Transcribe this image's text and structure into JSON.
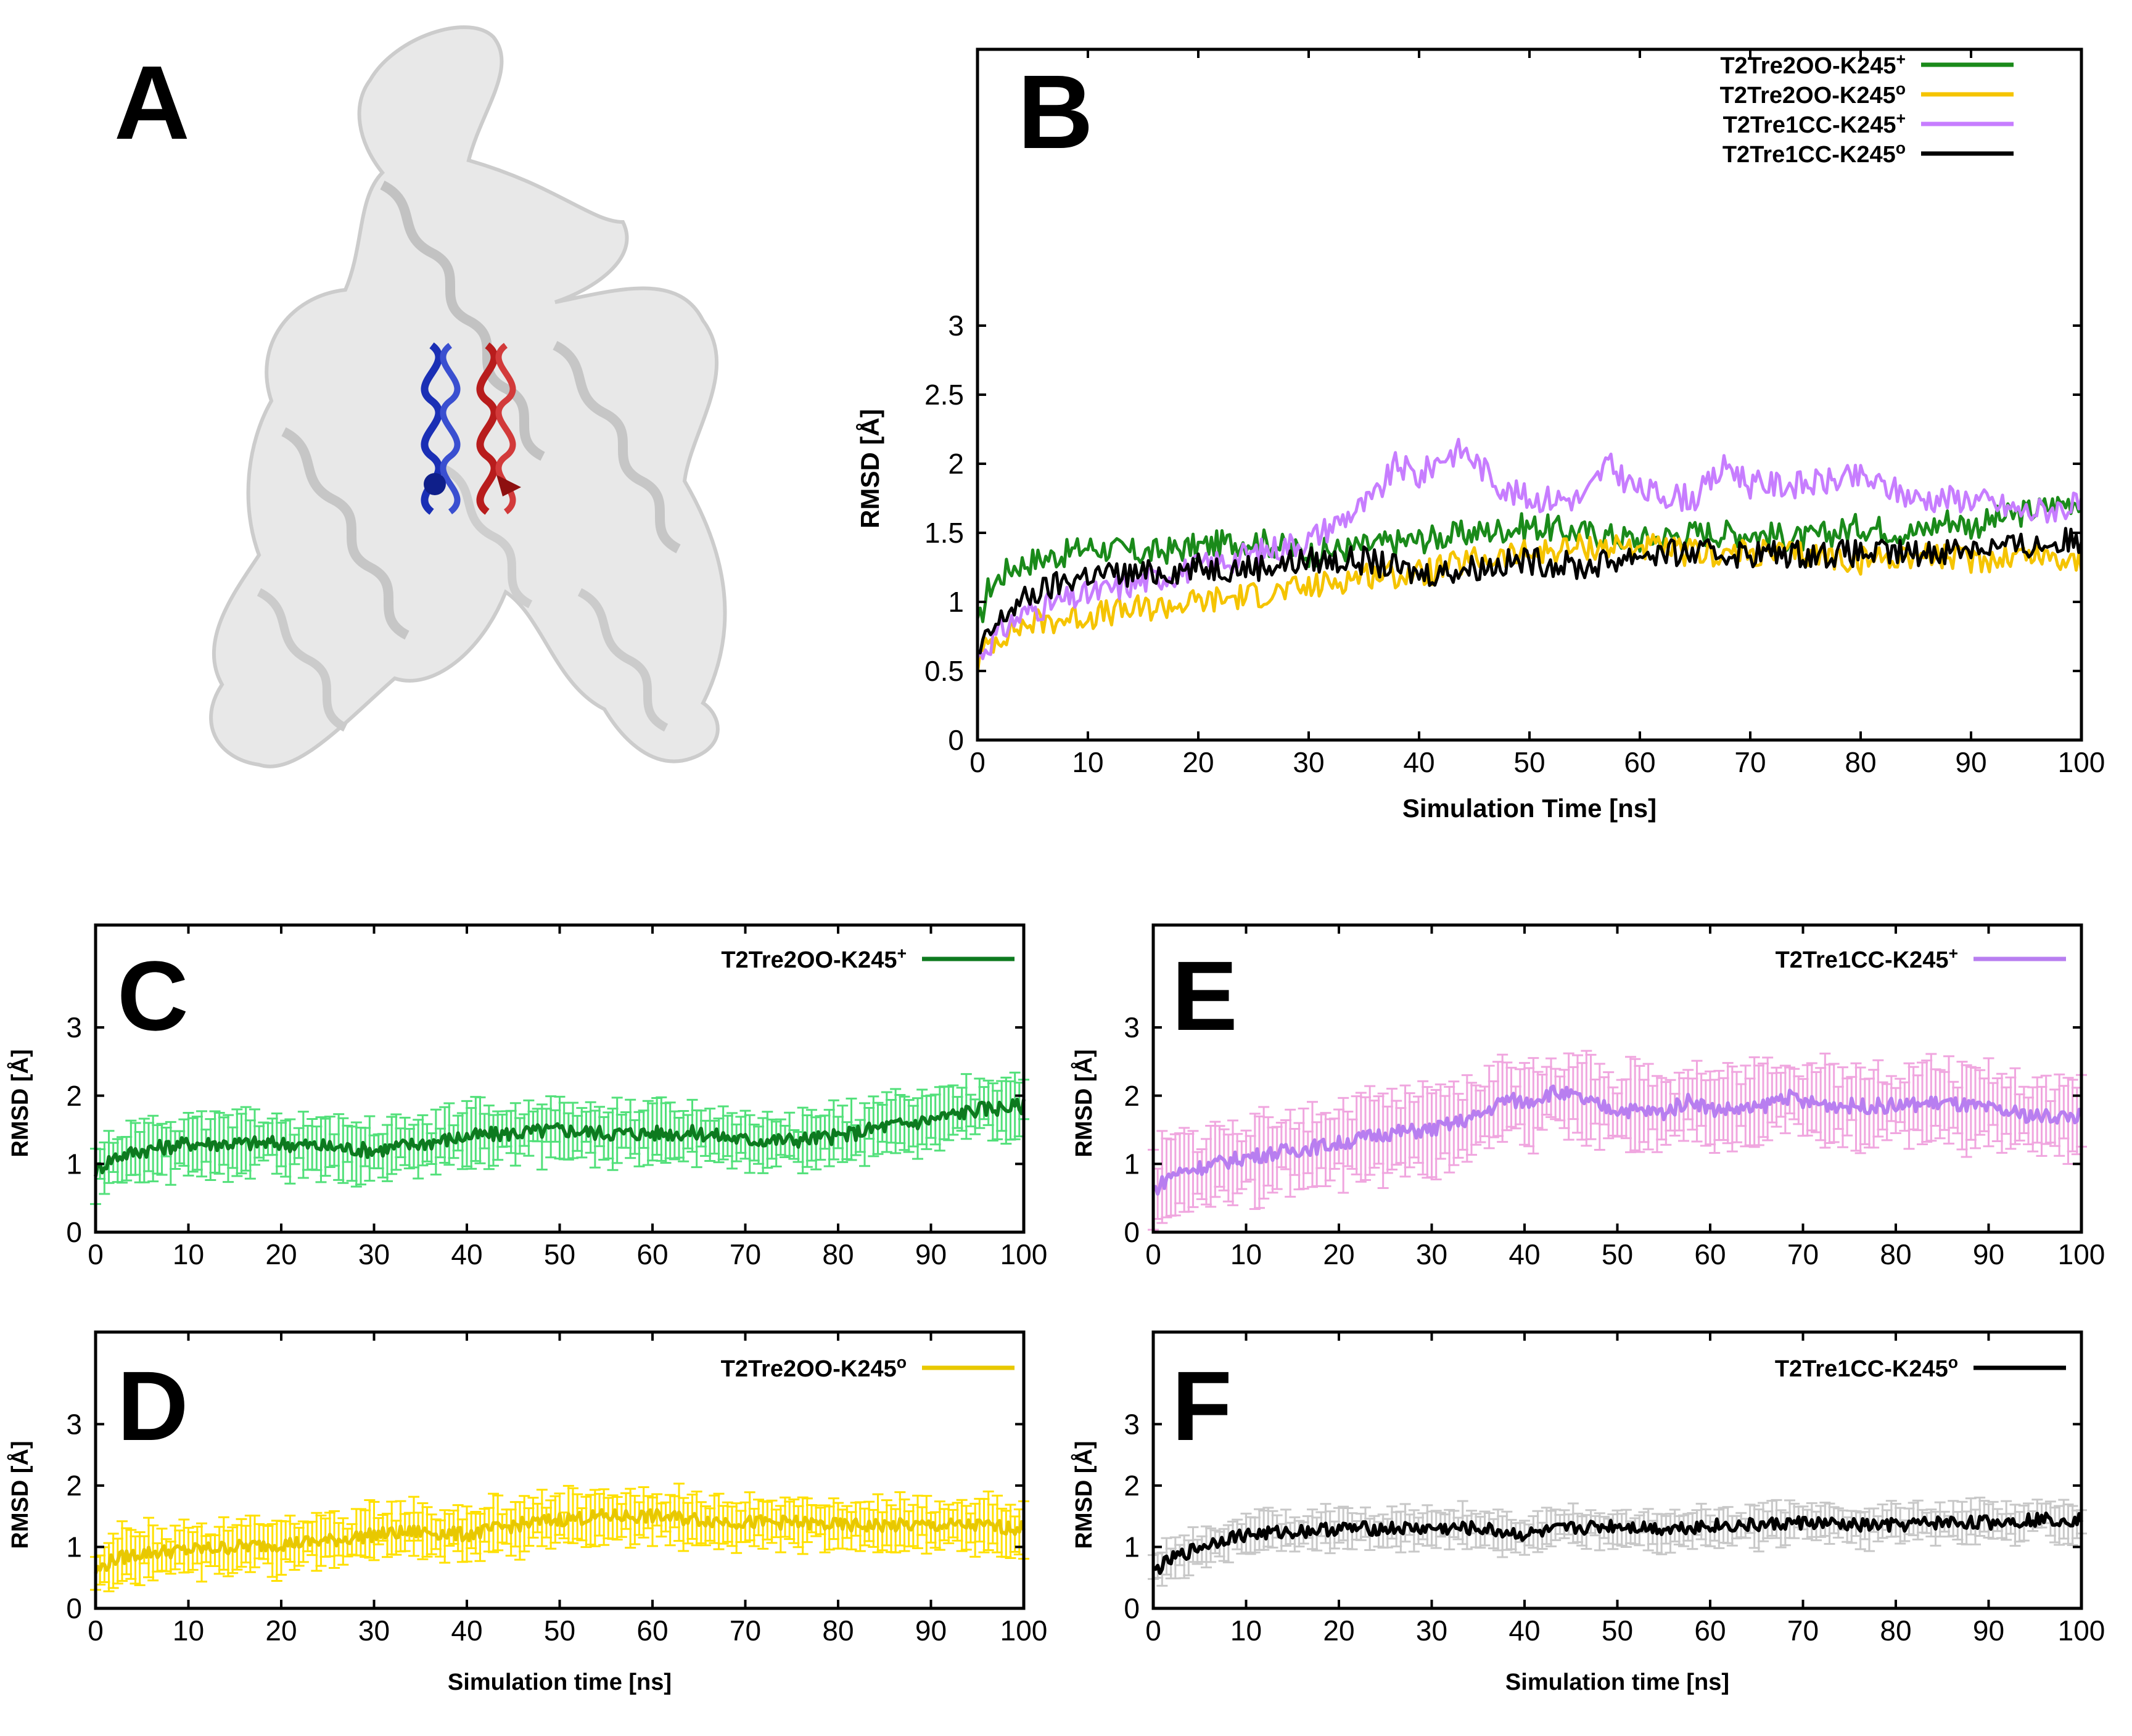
{
  "figure": {
    "panel_labels": [
      "A",
      "B",
      "C",
      "D",
      "E",
      "F"
    ]
  },
  "panel_a": {
    "description_icon": "protein-ribbon-structure-with-two-helices",
    "colors": {
      "protein": "#cfcfcf",
      "helix_left": "#1a2fb5",
      "helix_right": "#b81c1c"
    }
  },
  "chart_data": [
    {
      "id": "B",
      "type": "line",
      "xlabel": "Simulation Time [ns]",
      "ylabel": "RMSD [Å]",
      "xlim": [
        0,
        100
      ],
      "ylim": [
        0,
        5
      ],
      "xticks": [
        "0",
        "10",
        "20",
        "30",
        "40",
        "50",
        "60",
        "70",
        "80",
        "90",
        "100"
      ],
      "yticks": [
        "0",
        "0.5",
        "1",
        "1.5",
        "2",
        "2.5",
        "3"
      ],
      "legend": "top-right",
      "series": [
        {
          "name": "T2Tre2OO-K245",
          "sup": "+",
          "color": "#1a8a1a",
          "x": [
            0,
            1,
            3,
            5,
            8,
            10,
            15,
            20,
            25,
            30,
            35,
            40,
            45,
            50,
            55,
            60,
            65,
            70,
            75,
            80,
            85,
            88,
            90,
            95,
            100
          ],
          "values": [
            0.8,
            1.1,
            1.25,
            1.3,
            1.35,
            1.4,
            1.35,
            1.4,
            1.45,
            1.35,
            1.4,
            1.45,
            1.5,
            1.55,
            1.5,
            1.45,
            1.5,
            1.5,
            1.45,
            1.55,
            1.5,
            1.6,
            1.55,
            1.65,
            1.75
          ]
        },
        {
          "name": "T2Tre2OO-K245",
          "sup": "o",
          "color": "#f5c400",
          "x": [
            0,
            1,
            3,
            5,
            10,
            15,
            20,
            25,
            30,
            35,
            40,
            45,
            50,
            55,
            60,
            65,
            70,
            75,
            80,
            85,
            90,
            95,
            100
          ],
          "values": [
            0.55,
            0.7,
            0.8,
            0.85,
            0.9,
            0.95,
            1.0,
            1.05,
            1.1,
            1.2,
            1.2,
            1.3,
            1.35,
            1.4,
            1.4,
            1.35,
            1.35,
            1.35,
            1.3,
            1.35,
            1.3,
            1.35,
            1.3
          ]
        },
        {
          "name": "T2Tre1CC-K245",
          "sup": "+",
          "color": "#c77dff",
          "x": [
            0,
            1,
            3,
            5,
            10,
            15,
            20,
            25,
            30,
            33,
            36,
            38,
            40,
            42,
            44,
            46,
            48,
            50,
            55,
            57,
            60,
            65,
            68,
            70,
            75,
            80,
            85,
            90,
            95,
            100
          ],
          "values": [
            0.6,
            0.7,
            0.85,
            0.95,
            1.05,
            1.15,
            1.25,
            1.35,
            1.45,
            1.6,
            1.75,
            2.0,
            1.9,
            2.05,
            2.1,
            1.95,
            1.8,
            1.75,
            1.75,
            2.0,
            1.8,
            1.75,
            2.0,
            1.85,
            1.85,
            1.9,
            1.75,
            1.75,
            1.65,
            1.7
          ]
        },
        {
          "name": "T2Tre1CC-K245",
          "sup": "o",
          "color": "#000000",
          "x": [
            0,
            1,
            3,
            5,
            8,
            10,
            15,
            20,
            25,
            30,
            35,
            40,
            45,
            50,
            55,
            60,
            65,
            70,
            75,
            80,
            85,
            90,
            95,
            100
          ],
          "values": [
            0.6,
            0.75,
            0.95,
            1.05,
            1.15,
            1.2,
            1.2,
            1.25,
            1.25,
            1.3,
            1.3,
            1.2,
            1.25,
            1.3,
            1.25,
            1.35,
            1.35,
            1.35,
            1.35,
            1.35,
            1.35,
            1.4,
            1.4,
            1.45
          ]
        }
      ]
    },
    {
      "id": "C",
      "type": "line",
      "xlabel": "",
      "ylabel": "RMSD [Å]",
      "xlim": [
        0,
        100
      ],
      "ylim": [
        0,
        4.5
      ],
      "xticks": [
        "0",
        "10",
        "20",
        "30",
        "40",
        "50",
        "60",
        "70",
        "80",
        "90",
        "100"
      ],
      "yticks": [
        "0",
        "1",
        "2",
        "3"
      ],
      "legend": "top-right",
      "series": [
        {
          "name": "T2Tre2OO-K245",
          "sup": "+",
          "color": "#0d7a1f",
          "err_color": "#52e07a",
          "err": 0.35,
          "x": [
            0,
            2,
            5,
            10,
            15,
            20,
            25,
            30,
            35,
            40,
            45,
            50,
            55,
            60,
            65,
            70,
            75,
            80,
            85,
            88,
            90,
            95,
            100
          ],
          "values": [
            0.9,
            1.1,
            1.2,
            1.3,
            1.3,
            1.3,
            1.25,
            1.2,
            1.3,
            1.4,
            1.45,
            1.5,
            1.45,
            1.45,
            1.45,
            1.35,
            1.35,
            1.4,
            1.55,
            1.6,
            1.65,
            1.8,
            1.85
          ]
        }
      ]
    },
    {
      "id": "D",
      "type": "line",
      "xlabel": "Simulation time [ns]",
      "ylabel": "RMSD [Å]",
      "xlim": [
        0,
        100
      ],
      "ylim": [
        0,
        4.5
      ],
      "xticks": [
        "0",
        "10",
        "20",
        "30",
        "40",
        "50",
        "60",
        "70",
        "80",
        "90",
        "100"
      ],
      "yticks": [
        "0",
        "1",
        "2",
        "3"
      ],
      "legend": "top-right",
      "series": [
        {
          "name": "T2Tre2OO-K245",
          "sup": "o",
          "color": "#e8c800",
          "err_color": "#ffe000",
          "err": 0.35,
          "x": [
            0,
            2,
            5,
            10,
            15,
            20,
            25,
            30,
            35,
            40,
            45,
            50,
            55,
            60,
            65,
            70,
            75,
            80,
            85,
            90,
            95,
            100
          ],
          "values": [
            0.6,
            0.8,
            0.9,
            0.95,
            1.0,
            1.05,
            1.1,
            1.2,
            1.25,
            1.2,
            1.35,
            1.45,
            1.5,
            1.5,
            1.45,
            1.4,
            1.4,
            1.35,
            1.35,
            1.35,
            1.35,
            1.3
          ]
        }
      ]
    },
    {
      "id": "E",
      "type": "line",
      "xlabel": "",
      "ylabel": "RMSD [Å]",
      "xlim": [
        0,
        100
      ],
      "ylim": [
        0,
        4.5
      ],
      "xticks": [
        "0",
        "10",
        "20",
        "30",
        "40",
        "50",
        "60",
        "70",
        "80",
        "90",
        "100"
      ],
      "yticks": [
        "0",
        "1",
        "2",
        "3"
      ],
      "legend": "top-right",
      "series": [
        {
          "name": "T2Tre1CC-K245",
          "sup": "+",
          "color": "#b87ef0",
          "err_color": "#f0a6df",
          "err": 0.5,
          "x": [
            0,
            2,
            5,
            10,
            15,
            20,
            25,
            30,
            35,
            38,
            40,
            43,
            45,
            48,
            50,
            55,
            58,
            60,
            65,
            68,
            70,
            75,
            80,
            85,
            90,
            95,
            100
          ],
          "values": [
            0.6,
            0.85,
            0.95,
            1.1,
            1.2,
            1.3,
            1.45,
            1.5,
            1.7,
            1.95,
            1.9,
            2.05,
            2.0,
            1.85,
            1.8,
            1.75,
            1.95,
            1.8,
            1.8,
            2.0,
            1.9,
            1.85,
            1.85,
            1.9,
            1.8,
            1.7,
            1.7
          ]
        }
      ]
    },
    {
      "id": "F",
      "type": "line",
      "xlabel": "Simulation time [ns]",
      "ylabel": "RMSD [Å]",
      "xlim": [
        0,
        100
      ],
      "ylim": [
        0,
        4.5
      ],
      "xticks": [
        "0",
        "10",
        "20",
        "30",
        "40",
        "50",
        "60",
        "70",
        "80",
        "90",
        "100"
      ],
      "yticks": [
        "0",
        "1",
        "2",
        "3"
      ],
      "legend": "top-right",
      "series": [
        {
          "name": "T2Tre1CC-K245",
          "sup": "o",
          "color": "#000000",
          "err_color": "#c8c8c8",
          "err": 0.25,
          "x": [
            0,
            2,
            5,
            8,
            10,
            15,
            20,
            25,
            30,
            35,
            40,
            45,
            50,
            55,
            60,
            65,
            70,
            75,
            80,
            85,
            90,
            95,
            100
          ],
          "values": [
            0.6,
            0.8,
            1.0,
            1.15,
            1.2,
            1.25,
            1.3,
            1.3,
            1.3,
            1.3,
            1.2,
            1.3,
            1.35,
            1.3,
            1.35,
            1.35,
            1.4,
            1.35,
            1.35,
            1.4,
            1.4,
            1.45,
            1.45
          ]
        }
      ]
    }
  ]
}
